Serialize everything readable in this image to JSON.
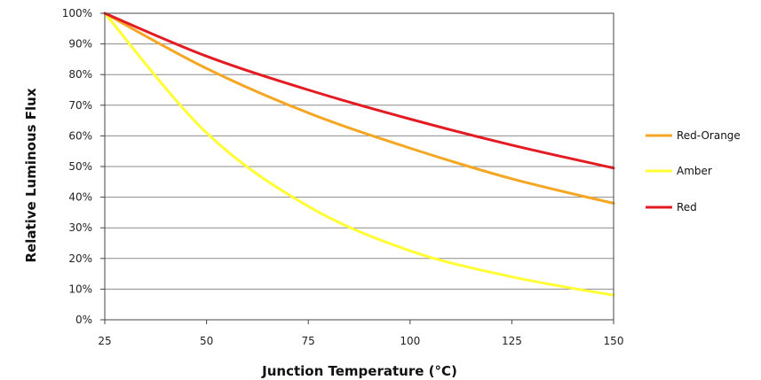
{
  "chart_data": {
    "type": "line",
    "xlabel": "Junction Temperature (°C)",
    "ylabel": "Relative Luminous Flux",
    "xlim": [
      25,
      150
    ],
    "ylim": [
      0,
      100
    ],
    "x_ticks": [
      "25",
      "50",
      "75",
      "100",
      "125",
      "150"
    ],
    "y_ticks": [
      "0%",
      "10%",
      "20%",
      "30%",
      "40%",
      "50%",
      "60%",
      "70%",
      "80%",
      "90%",
      "100%"
    ],
    "grid": "horizontal",
    "legend_position": "right",
    "x": [
      25,
      50,
      75,
      100,
      125,
      150
    ],
    "series": [
      {
        "name": "Red-Orange",
        "color": "#f5a623",
        "values": [
          100,
          82,
          67.5,
          56,
          46,
          38
        ]
      },
      {
        "name": "Amber",
        "color": "#ffff33",
        "values": [
          100,
          61,
          37,
          22.5,
          14,
          8
        ]
      },
      {
        "name": "Red",
        "color": "#e31b23",
        "values": [
          100,
          86,
          75,
          65.5,
          57,
          49.5
        ]
      }
    ]
  }
}
